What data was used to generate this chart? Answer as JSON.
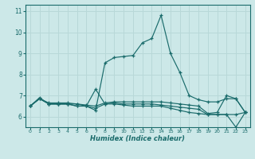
{
  "title": "",
  "xlabel": "Humidex (Indice chaleur)",
  "bg_color": "#cce8e8",
  "grid_color": "#b8d8d8",
  "line_color": "#1a6b6b",
  "xlim": [
    -0.5,
    23.5
  ],
  "ylim": [
    5.5,
    11.3
  ],
  "yticks": [
    6,
    7,
    8,
    9,
    10,
    11
  ],
  "xticks": [
    0,
    1,
    2,
    3,
    4,
    5,
    6,
    7,
    8,
    9,
    10,
    11,
    12,
    13,
    14,
    15,
    16,
    17,
    18,
    19,
    20,
    21,
    22,
    23
  ],
  "series": [
    {
      "x": [
        0,
        1,
        2,
        3,
        4,
        5,
        6,
        7,
        8,
        9,
        10,
        11,
        12,
        13,
        14,
        15,
        16,
        17,
        18,
        19,
        20,
        21,
        22,
        23
      ],
      "y": [
        6.5,
        6.9,
        6.6,
        6.6,
        6.6,
        6.6,
        6.5,
        6.3,
        8.55,
        8.8,
        8.85,
        8.9,
        9.5,
        9.7,
        10.8,
        9.0,
        8.1,
        7.0,
        6.8,
        6.7,
        6.7,
        6.85,
        6.85,
        6.2
      ]
    },
    {
      "x": [
        0,
        1,
        2,
        3,
        4,
        5,
        6,
        7,
        8,
        9,
        10,
        11,
        12,
        13,
        14,
        15,
        16,
        17,
        18,
        19,
        20,
        21,
        22,
        23
      ],
      "y": [
        6.5,
        6.85,
        6.6,
        6.6,
        6.6,
        6.5,
        6.5,
        7.3,
        6.6,
        6.6,
        6.55,
        6.5,
        6.5,
        6.5,
        6.5,
        6.4,
        6.3,
        6.2,
        6.15,
        6.1,
        6.1,
        6.1,
        5.5,
        6.2
      ]
    },
    {
      "x": [
        0,
        1,
        2,
        3,
        4,
        5,
        6,
        7,
        8,
        9,
        10,
        11,
        12,
        13,
        14,
        15,
        16,
        17,
        18,
        19,
        20,
        21,
        22,
        23
      ],
      "y": [
        6.5,
        6.85,
        6.6,
        6.6,
        6.6,
        6.5,
        6.5,
        6.4,
        6.6,
        6.65,
        6.6,
        6.6,
        6.6,
        6.6,
        6.55,
        6.5,
        6.45,
        6.4,
        6.35,
        6.1,
        6.1,
        6.1,
        6.1,
        6.2
      ]
    },
    {
      "x": [
        0,
        1,
        2,
        3,
        4,
        5,
        6,
        7,
        8,
        9,
        10,
        11,
        12,
        13,
        14,
        15,
        16,
        17,
        18,
        19,
        20,
        21,
        22,
        23
      ],
      "y": [
        6.5,
        6.85,
        6.65,
        6.65,
        6.65,
        6.6,
        6.55,
        6.5,
        6.65,
        6.7,
        6.7,
        6.7,
        6.7,
        6.7,
        6.7,
        6.65,
        6.6,
        6.55,
        6.5,
        6.15,
        6.2,
        7.0,
        6.85,
        6.2
      ]
    }
  ]
}
